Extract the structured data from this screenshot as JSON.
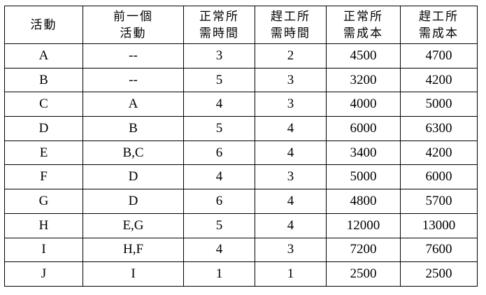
{
  "headers": [
    [
      "活動"
    ],
    [
      "前一個",
      "活動"
    ],
    [
      "正常所",
      "需時間"
    ],
    [
      "趕工所",
      "需時間"
    ],
    [
      "正常所",
      "需成本"
    ],
    [
      "趕工所",
      "需成本"
    ]
  ],
  "rows": [
    [
      "A",
      "--",
      "3",
      "2",
      "4500",
      "4700"
    ],
    [
      "B",
      "--",
      "5",
      "3",
      "3200",
      "4200"
    ],
    [
      "C",
      "A",
      "4",
      "3",
      "4000",
      "5000"
    ],
    [
      "D",
      "B",
      "5",
      "4",
      "6000",
      "6300"
    ],
    [
      "E",
      "B,C",
      "6",
      "4",
      "3400",
      "4200"
    ],
    [
      "F",
      "D",
      "4",
      "3",
      "5000",
      "6000"
    ],
    [
      "G",
      "D",
      "6",
      "4",
      "4800",
      "5700"
    ],
    [
      "H",
      "E,G",
      "5",
      "4",
      "12000",
      "13000"
    ],
    [
      "I",
      "H,F",
      "4",
      "3",
      "7200",
      "7600"
    ],
    [
      "J",
      "I",
      "1",
      "1",
      "2500",
      "2500"
    ]
  ]
}
